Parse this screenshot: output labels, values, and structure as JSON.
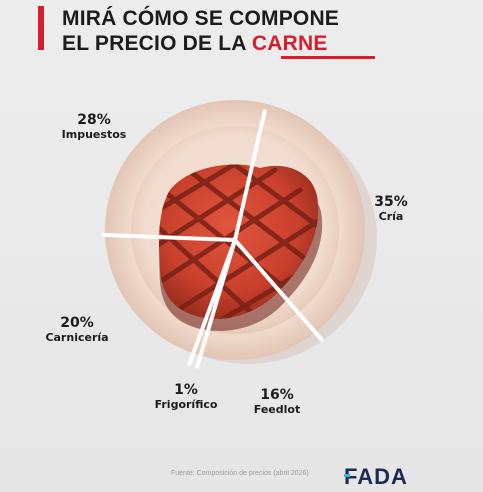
{
  "header": {
    "title_line1": "MIRÁ CÓMO SE COMPONE",
    "title_line2_prefix": "EL PRECIO DE LA ",
    "title_line2_accent": "CARNE",
    "accent_color": "#d51f2c"
  },
  "chart_data": {
    "type": "pie",
    "slices": [
      {
        "label": "Cría",
        "value": 35,
        "display": "35%"
      },
      {
        "label": "Feedlot",
        "value": 16,
        "display": "16%"
      },
      {
        "label": "Frigorífico",
        "value": 1,
        "display": "1%"
      },
      {
        "label": "Carnicería",
        "value": 20,
        "display": "20%"
      },
      {
        "label": "Impuestos",
        "value": 28,
        "display": "28%"
      }
    ],
    "start_angle_deg": 13,
    "direction": "clockwise",
    "background_image": "plate-with-grilled-steak"
  },
  "footer": {
    "source": "Fuente: Composición de precios (abril 2026)",
    "logo_text": "FADA",
    "logo_color": "#1d2a55",
    "logo_accent_color": "#35b6e6"
  }
}
